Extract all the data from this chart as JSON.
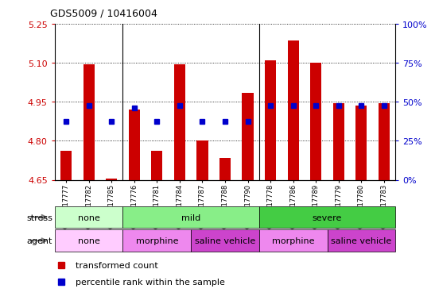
{
  "title": "GDS5009 / 10416004",
  "samples": [
    "GSM1217777",
    "GSM1217782",
    "GSM1217785",
    "GSM1217776",
    "GSM1217781",
    "GSM1217784",
    "GSM1217787",
    "GSM1217788",
    "GSM1217790",
    "GSM1217778",
    "GSM1217786",
    "GSM1217789",
    "GSM1217779",
    "GSM1217780",
    "GSM1217783"
  ],
  "bar_values": [
    4.76,
    5.095,
    4.655,
    4.92,
    4.76,
    5.095,
    4.8,
    4.735,
    4.985,
    5.11,
    5.185,
    5.1,
    4.945,
    4.935,
    4.945
  ],
  "base_value": 4.65,
  "dot_values": [
    4.875,
    4.935,
    4.875,
    4.925,
    4.875,
    4.935,
    4.875,
    4.875,
    4.875,
    4.935,
    4.935,
    4.935,
    4.935,
    4.935,
    4.935
  ],
  "bar_color": "#cc0000",
  "dot_color": "#0000cc",
  "ylim": [
    4.65,
    5.25
  ],
  "yticks": [
    4.65,
    4.8,
    4.95,
    5.1,
    5.25
  ],
  "y2ticks_labels": [
    "0%",
    "25%",
    "50%",
    "75%",
    "100%"
  ],
  "ylabel_color": "#cc0000",
  "y2label_color": "#0000cc",
  "stress_groups": [
    {
      "label": "none",
      "start": 0,
      "end": 3,
      "color": "#ccffcc"
    },
    {
      "label": "mild",
      "start": 3,
      "end": 9,
      "color": "#88ee88"
    },
    {
      "label": "severe",
      "start": 9,
      "end": 15,
      "color": "#44cc44"
    }
  ],
  "agent_groups": [
    {
      "label": "none",
      "start": 0,
      "end": 3,
      "color": "#ffccff"
    },
    {
      "label": "morphine",
      "start": 3,
      "end": 6,
      "color": "#ee88ee"
    },
    {
      "label": "saline vehicle",
      "start": 6,
      "end": 9,
      "color": "#cc44cc"
    },
    {
      "label": "morphine",
      "start": 9,
      "end": 12,
      "color": "#ee88ee"
    },
    {
      "label": "saline vehicle",
      "start": 12,
      "end": 15,
      "color": "#cc44cc"
    }
  ],
  "stress_label": "stress",
  "agent_label": "agent",
  "legend_items": [
    {
      "label": "transformed count",
      "color": "#cc0000"
    },
    {
      "label": "percentile rank within the sample",
      "color": "#0000cc"
    }
  ],
  "bar_width": 0.5,
  "bg_color": "#ffffff"
}
